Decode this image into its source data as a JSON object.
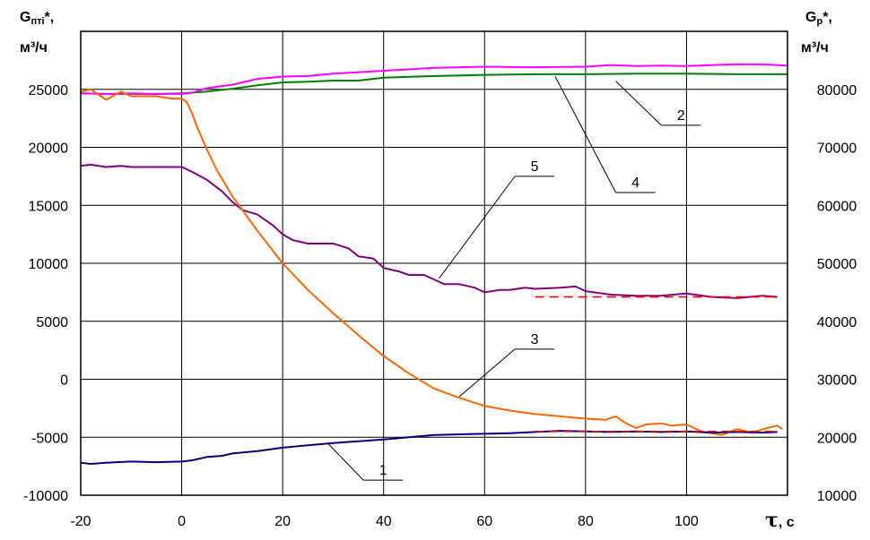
{
  "chart_data": {
    "type": "line",
    "left_axis": {
      "label": "Gₙₜᵢ*,",
      "label_main": "G",
      "label_sub": "пті",
      "label_suffix": "*,",
      "unit": "м³/ч",
      "ylim": [
        -10000,
        30000
      ],
      "ticks": [
        "-10000",
        "-5000",
        "0",
        "5000",
        "10000",
        "15000",
        "20000",
        "25000"
      ]
    },
    "right_axis": {
      "label_main": "G",
      "label_sub": "р",
      "label_suffix": "*,",
      "unit": "м³/ч",
      "ylim": [
        10000,
        90000
      ],
      "ticks": [
        "10000",
        "20000",
        "30000",
        "40000",
        "50000",
        "60000",
        "70000",
        "80000"
      ]
    },
    "x_axis": {
      "label_symbol": "τ",
      "label_unit": ", с",
      "xlim": [
        -20,
        120
      ],
      "ticks": [
        "-20",
        "0",
        "20",
        "40",
        "60",
        "80",
        "100"
      ]
    },
    "grid": true,
    "series": [
      {
        "name": "1",
        "axis": "left",
        "color": "#000080",
        "x": [
          -20,
          -18,
          -15,
          -10,
          -5,
          0,
          2,
          5,
          8,
          10,
          15,
          20,
          25,
          30,
          35,
          40,
          45,
          50,
          55,
          60,
          65,
          70,
          75,
          80,
          85,
          90,
          95,
          100,
          105,
          110,
          115,
          118
        ],
        "y": [
          -7200,
          -7300,
          -7200,
          -7100,
          -7150,
          -7100,
          -7000,
          -6700,
          -6600,
          -6400,
          -6200,
          -5900,
          -5700,
          -5500,
          -5350,
          -5200,
          -5000,
          -4800,
          -4750,
          -4700,
          -4650,
          -4550,
          -4450,
          -4500,
          -4550,
          -4500,
          -4550,
          -4500,
          -4600,
          -4550,
          -4600,
          -4550
        ]
      },
      {
        "name": "2",
        "axis": "right",
        "color": "#FF00FF",
        "x": [
          -20,
          -15,
          -10,
          -5,
          0,
          2,
          5,
          10,
          15,
          20,
          25,
          30,
          40,
          50,
          60,
          70,
          80,
          85,
          90,
          95,
          100,
          105,
          110,
          115,
          120
        ],
        "y": [
          79300,
          79200,
          79300,
          79200,
          79200,
          79400,
          80200,
          80800,
          81800,
          82200,
          82300,
          82700,
          83200,
          83700,
          83900,
          83800,
          83900,
          84200,
          84000,
          84100,
          84000,
          84200,
          84300,
          84300,
          84100
        ]
      },
      {
        "name": "3",
        "axis": "left",
        "color": "#FF6600",
        "x": [
          -20,
          -18,
          -15,
          -12,
          -10,
          -5,
          -2,
          0,
          1,
          2,
          3,
          4,
          5,
          7,
          10,
          15,
          20,
          25,
          30,
          35,
          40,
          45,
          50,
          55,
          60,
          65,
          70,
          75,
          80,
          84,
          86,
          88,
          90,
          92,
          95,
          97,
          100,
          103,
          107,
          110,
          113,
          116,
          118,
          119
        ],
        "y": [
          24800,
          25000,
          24100,
          24800,
          24400,
          24400,
          24200,
          24200,
          23900,
          23000,
          21800,
          20800,
          19800,
          18000,
          15800,
          12800,
          10000,
          7700,
          5700,
          3800,
          2000,
          500,
          -800,
          -1600,
          -2300,
          -2700,
          -3000,
          -3200,
          -3400,
          -3500,
          -3200,
          -3800,
          -4200,
          -3900,
          -3800,
          -4000,
          -3900,
          -4500,
          -4800,
          -4300,
          -4600,
          -4200,
          -4000,
          -4300
        ]
      },
      {
        "name": "4",
        "axis": "right",
        "color": "#008000",
        "x": [
          -20,
          -15,
          -10,
          -5,
          0,
          5,
          10,
          15,
          20,
          25,
          30,
          35,
          40,
          50,
          60,
          70,
          80,
          90,
          100,
          110,
          120
        ],
        "y": [
          79300,
          79200,
          79200,
          79200,
          79300,
          79600,
          80100,
          80700,
          81200,
          81300,
          81500,
          81500,
          82000,
          82300,
          82500,
          82600,
          82600,
          82700,
          82700,
          82600,
          82600
        ]
      },
      {
        "name": "5",
        "axis": "left",
        "color": "#800080",
        "x": [
          -20,
          -18,
          -15,
          -12,
          -10,
          -5,
          0,
          2,
          5,
          8,
          10,
          12,
          15,
          18,
          20,
          22,
          25,
          30,
          33,
          35,
          38,
          40,
          43,
          45,
          48,
          50,
          52,
          55,
          58,
          60,
          63,
          65,
          68,
          70,
          75,
          78,
          80,
          85,
          90,
          95,
          100,
          105,
          110,
          115,
          118
        ],
        "y": [
          18400,
          18500,
          18300,
          18400,
          18300,
          18300,
          18300,
          17900,
          17200,
          16200,
          15300,
          14600,
          14200,
          13300,
          12500,
          12000,
          11700,
          11700,
          11300,
          10600,
          10400,
          9600,
          9300,
          9000,
          9000,
          8600,
          8200,
          8200,
          7900,
          7500,
          7700,
          7700,
          7900,
          7800,
          7900,
          8000,
          7600,
          7300,
          7200,
          7200,
          7400,
          7100,
          7000,
          7200,
          7100
        ]
      }
    ],
    "dashed_lines": [
      {
        "axis": "left",
        "color": "#FF0000",
        "x": [
          70,
          118
        ],
        "y": [
          7100,
          7100
        ]
      },
      {
        "axis": "left",
        "color": "#FF0000",
        "x": [
          70,
          118
        ],
        "y": [
          -4500,
          -4500
        ]
      }
    ],
    "annotations": [
      {
        "text": "1",
        "series": "1",
        "point": [
          29,
          -5550
        ],
        "label": [
          36,
          -8700
        ]
      },
      {
        "text": "2",
        "series": "2",
        "point": [
          86,
          25700
        ],
        "label": [
          95,
          21900
        ]
      },
      {
        "text": "3",
        "series": "3",
        "point": [
          55,
          -1500
        ],
        "label": [
          66,
          2600
        ]
      },
      {
        "text": "4",
        "series": "4",
        "point": [
          74,
          26100
        ],
        "label": [
          86,
          16100
        ]
      },
      {
        "text": "5",
        "series": "5",
        "point": [
          51,
          8700
        ],
        "label": [
          66,
          17500
        ]
      }
    ]
  }
}
